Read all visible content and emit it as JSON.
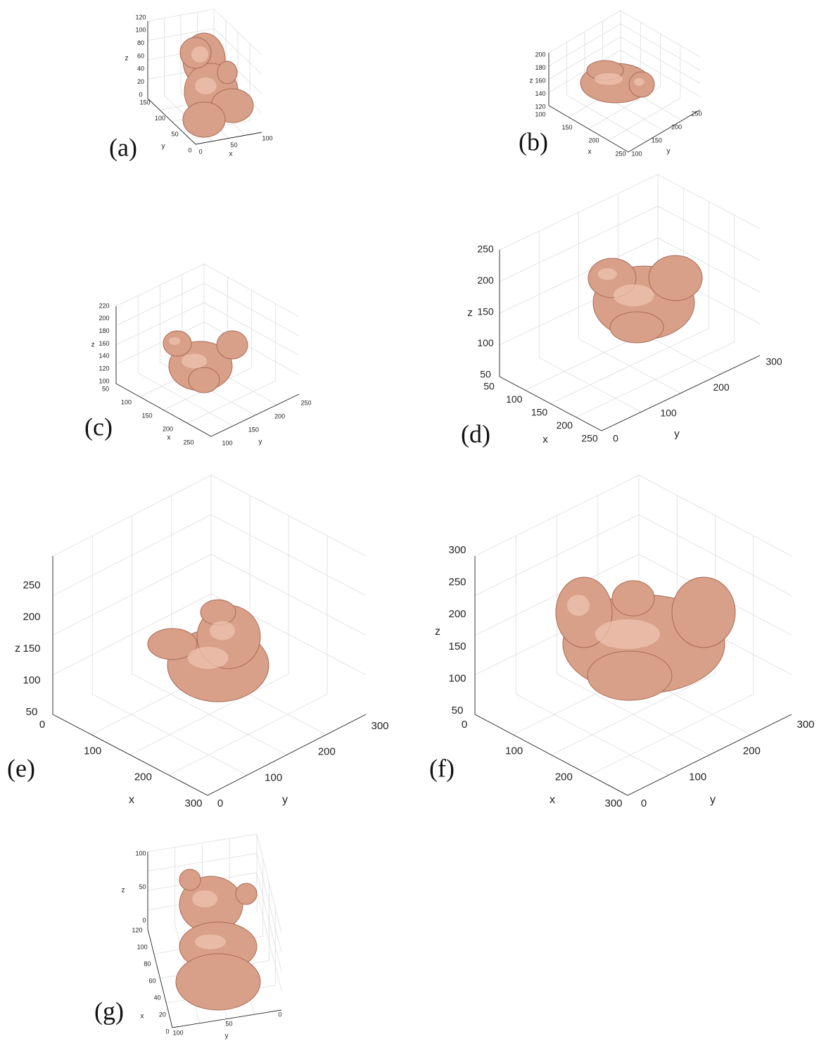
{
  "panels": [
    {
      "label": "(a)",
      "x_title": "x",
      "y_title": "y",
      "z_title": "z",
      "x_ticks": [
        0,
        50,
        100
      ],
      "y_ticks": [
        0,
        50,
        100,
        150
      ],
      "z_ticks": [
        0,
        20,
        40,
        60,
        80,
        100,
        120
      ]
    },
    {
      "label": "(b)",
      "x_title": "x",
      "y_title": "y",
      "z_title": "z",
      "x_ticks": [
        100,
        150,
        200,
        250
      ],
      "y_ticks": [
        100,
        150,
        200,
        250
      ],
      "z_ticks": [
        120,
        140,
        160,
        180,
        200
      ]
    },
    {
      "label": "(c)",
      "x_title": "x",
      "y_title": "y",
      "z_title": "z",
      "x_ticks": [
        50,
        100,
        150,
        200,
        250
      ],
      "y_ticks": [
        100,
        150,
        200,
        250
      ],
      "z_ticks": [
        100,
        120,
        140,
        160,
        180,
        200,
        220
      ]
    },
    {
      "label": "(d)",
      "x_title": "x",
      "y_title": "y",
      "z_title": "z",
      "x_ticks": [
        50,
        100,
        150,
        200,
        250
      ],
      "y_ticks": [
        0,
        100,
        200,
        300
      ],
      "z_ticks": [
        50,
        100,
        150,
        200,
        250
      ]
    },
    {
      "label": "(e)",
      "x_title": "x",
      "y_title": "y",
      "z_title": "z",
      "x_ticks": [
        0,
        100,
        200,
        300
      ],
      "y_ticks": [
        0,
        100,
        200,
        300
      ],
      "z_ticks": [
        50,
        100,
        150,
        200,
        250
      ]
    },
    {
      "label": "(f)",
      "x_title": "x",
      "y_title": "y",
      "z_title": "z",
      "x_ticks": [
        0,
        100,
        200,
        300
      ],
      "y_ticks": [
        0,
        100,
        200,
        300
      ],
      "z_ticks": [
        50,
        100,
        150,
        200,
        250,
        300
      ]
    },
    {
      "label": "(g)",
      "x_title": "x",
      "y_title": "y",
      "z_title": "z",
      "x_ticks": [
        0,
        20,
        40,
        60,
        80,
        100,
        120
      ],
      "y_ticks": [
        0,
        50,
        100
      ],
      "z_ticks": [
        0,
        50,
        100
      ]
    }
  ]
}
